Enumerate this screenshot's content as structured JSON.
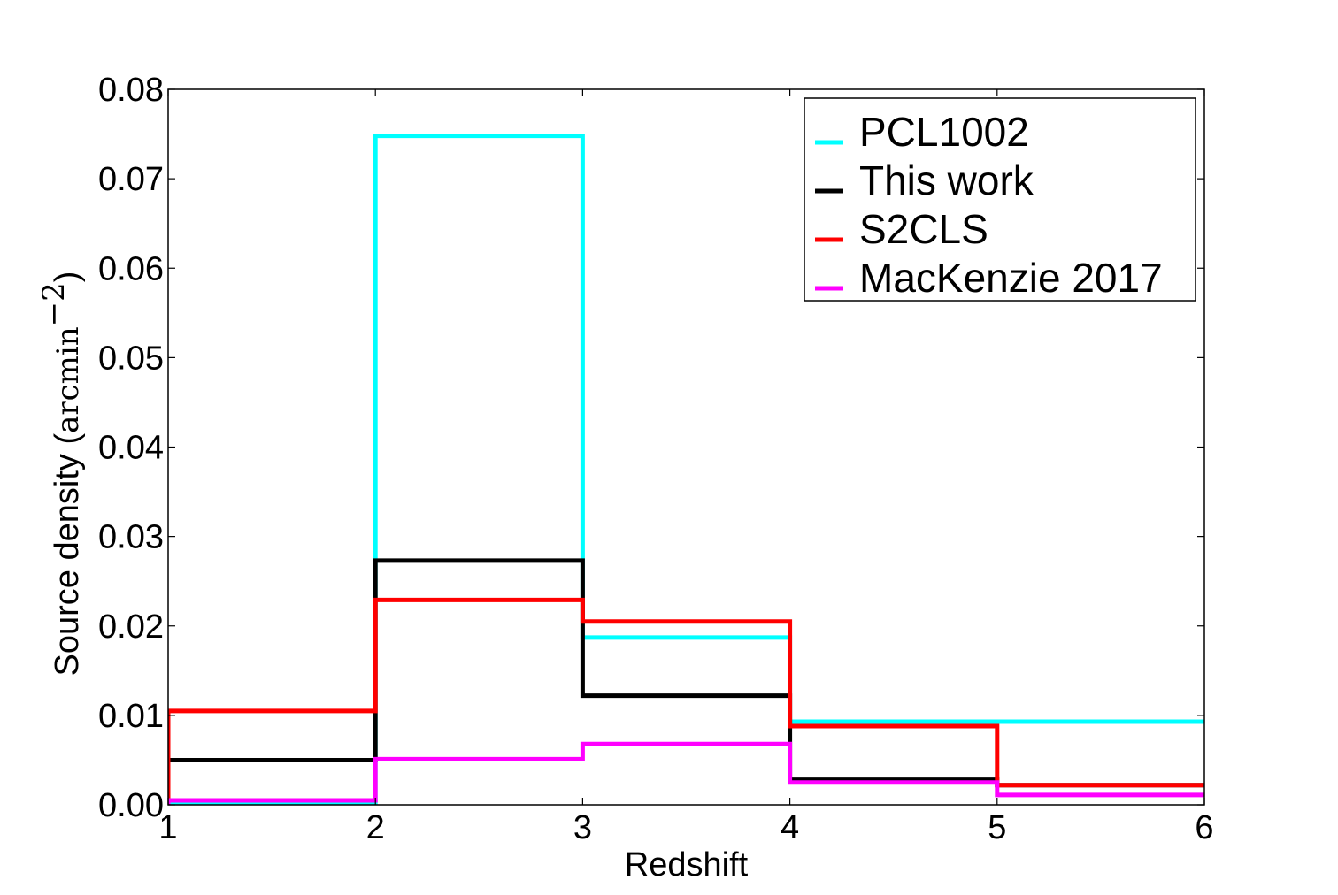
{
  "chart_data": {
    "type": "line",
    "step": true,
    "xlabel": "Redshift",
    "ylabel_prefix": "Source density (",
    "ylabel_unit": "arcmin",
    "ylabel_exponent": "−2",
    "ylabel_suffix": ")",
    "xlim": [
      1,
      6
    ],
    "ylim": [
      0.0,
      0.08
    ],
    "xticks": [
      1,
      2,
      3,
      4,
      5,
      6
    ],
    "xtick_labels": [
      "1",
      "2",
      "3",
      "4",
      "5",
      "6"
    ],
    "yticks": [
      0.0,
      0.01,
      0.02,
      0.03,
      0.04,
      0.05,
      0.06,
      0.07,
      0.08
    ],
    "ytick_labels": [
      "0.00",
      "0.01",
      "0.02",
      "0.03",
      "0.04",
      "0.05",
      "0.06",
      "0.07",
      "0.08"
    ],
    "bin_edges": [
      1,
      2,
      3,
      4,
      5,
      6
    ],
    "legend_position": "upper-right",
    "grid": false,
    "series": [
      {
        "name": "PCL1002",
        "color": "#00ffff",
        "values": [
          0.0003,
          0.0748,
          0.0187,
          0.0093,
          0.0093
        ]
      },
      {
        "name": "This work",
        "color": "#000000",
        "values": [
          0.005,
          0.0273,
          0.0122,
          0.0028,
          0.0022
        ]
      },
      {
        "name": "S2CLS",
        "color": "#ff0000",
        "values": [
          0.0105,
          0.0229,
          0.0205,
          0.0088,
          0.0022
        ]
      },
      {
        "name": "MacKenzie 2017",
        "color": "#ff00ff",
        "values": [
          0.0005,
          0.0051,
          0.0068,
          0.0025,
          0.0011
        ]
      }
    ]
  }
}
